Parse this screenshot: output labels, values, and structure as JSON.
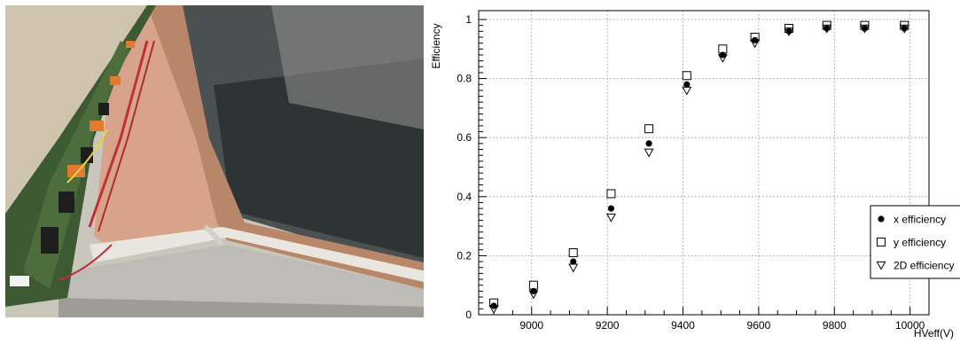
{
  "chart_data": {
    "type": "scatter",
    "title": "",
    "xlabel": "HVeff(V)",
    "ylabel": "Efficiency",
    "xlim": [
      8860,
      10050
    ],
    "ylim": [
      0,
      1.03
    ],
    "x_ticks": [
      9000,
      9200,
      9400,
      9600,
      9800,
      10000
    ],
    "x_tick_labels": [
      "9000",
      "9200",
      "9400",
      "9600",
      "9800",
      "10000"
    ],
    "y_ticks": [
      0,
      0.2,
      0.4,
      0.6,
      0.8,
      1
    ],
    "y_tick_labels": [
      "0",
      "0.2",
      "0.4",
      "0.6",
      "0.8",
      "1"
    ],
    "grid": true,
    "legend_position": "bottom-right",
    "x": [
      8900,
      9005,
      9110,
      9210,
      9310,
      9410,
      9505,
      9590,
      9680,
      9780,
      9880,
      9985
    ],
    "series": [
      {
        "name": "x efficiency",
        "marker": "filled-circle",
        "values": [
          0.03,
          0.08,
          0.18,
          0.36,
          0.58,
          0.78,
          0.88,
          0.93,
          0.96,
          0.97,
          0.97,
          0.97
        ]
      },
      {
        "name": "y efficiency",
        "marker": "open-square",
        "values": [
          0.04,
          0.1,
          0.21,
          0.41,
          0.63,
          0.81,
          0.9,
          0.94,
          0.97,
          0.98,
          0.98,
          0.98
        ]
      },
      {
        "name": "2D efficiency",
        "marker": "open-triangle-down",
        "values": [
          0.02,
          0.07,
          0.16,
          0.33,
          0.55,
          0.76,
          0.87,
          0.92,
          0.96,
          0.97,
          0.97,
          0.97
        ]
      }
    ]
  }
}
